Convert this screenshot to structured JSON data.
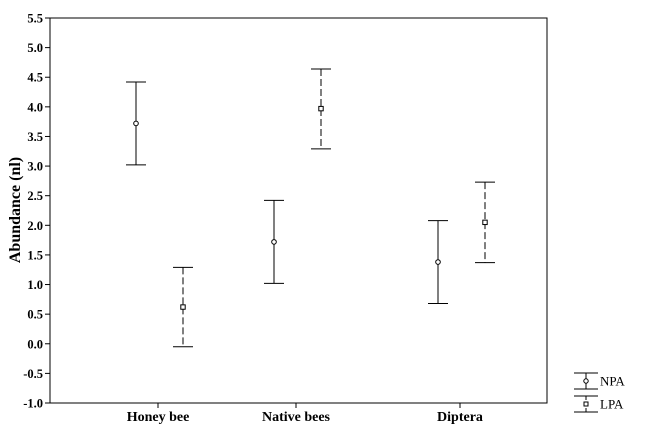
{
  "chart_data": {
    "type": "errorbar",
    "categories": [
      "Honey bee",
      "Native bees",
      "Diptera"
    ],
    "ylabel": "Abundance (nl)",
    "ylim": [
      -1.0,
      5.5
    ],
    "yticks": [
      "-1.0",
      "-0.5",
      "0.0",
      "0.5",
      "1.0",
      "1.5",
      "2.0",
      "2.5",
      "3.0",
      "3.5",
      "4.0",
      "4.5",
      "5.0",
      "5.5"
    ],
    "grid": false,
    "legend_position": "bottom-right, outside plot",
    "series": [
      {
        "name": "NPA",
        "line_style": "solid",
        "marker": "circle",
        "means": [
          3.72,
          1.72,
          1.38
        ],
        "lower": [
          3.02,
          1.02,
          0.68
        ],
        "upper": [
          4.42,
          2.42,
          2.08
        ]
      },
      {
        "name": "LPA",
        "line_style": "dashed",
        "marker": "square",
        "means": [
          0.62,
          3.97,
          2.05
        ],
        "lower": [
          -0.05,
          3.29,
          1.37
        ],
        "upper": [
          1.29,
          4.64,
          2.73
        ]
      }
    ]
  }
}
